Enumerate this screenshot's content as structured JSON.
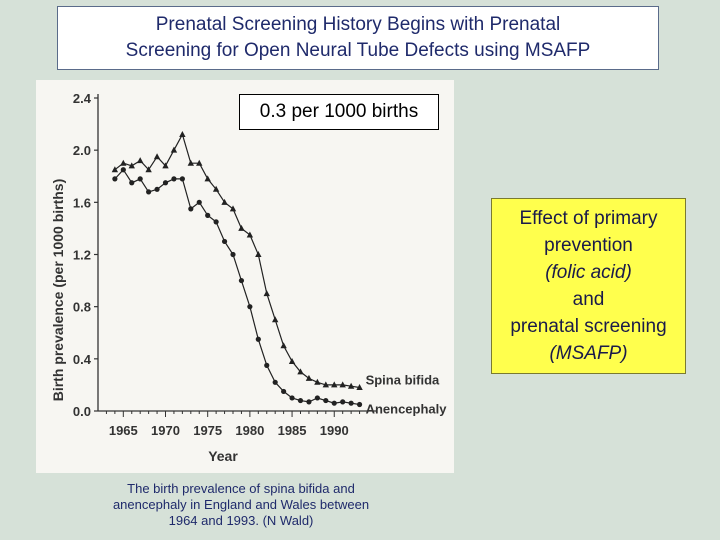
{
  "slide": {
    "title_line1": "Prenatal Screening History Begins with Prenatal",
    "title_line2": "Screening for Open Neural Tube Defects using MSAFP",
    "callout": "0.3 per 1000 births",
    "effect": {
      "line1": "Effect of primary",
      "line2": "prevention",
      "line3": "(folic acid)",
      "line4": "and",
      "line5": "prenatal screening",
      "line6": "(MSAFP)"
    },
    "caption": {
      "line1": "The birth prevalence of spina bifida and",
      "line2": "anencephaly in England and Wales between",
      "line3": "1964 and 1993. (N Wald)"
    }
  },
  "chart_data": {
    "type": "line",
    "xlabel": "Year",
    "ylabel": "Birth prevalence (per 1000 births)",
    "xlim": [
      1962,
      1994
    ],
    "ylim": [
      0.0,
      2.4
    ],
    "xticks": [
      "1965",
      "1970",
      "1975",
      "1980",
      "1985",
      "1990"
    ],
    "yticks": [
      "0.0",
      "0.4",
      "0.8",
      "1.2",
      "1.6",
      "2.0",
      "2.4"
    ],
    "grid": false,
    "series": [
      {
        "name": "Spina bifida",
        "marker": "triangle",
        "x": [
          1964,
          1965,
          1966,
          1967,
          1968,
          1969,
          1970,
          1971,
          1972,
          1973,
          1974,
          1975,
          1976,
          1977,
          1978,
          1979,
          1980,
          1981,
          1982,
          1983,
          1984,
          1985,
          1986,
          1987,
          1988,
          1989,
          1990,
          1991,
          1992,
          1993
        ],
        "y": [
          1.85,
          1.9,
          1.88,
          1.92,
          1.85,
          1.95,
          1.88,
          2.0,
          2.12,
          1.9,
          1.9,
          1.78,
          1.7,
          1.6,
          1.55,
          1.4,
          1.35,
          1.2,
          0.9,
          0.7,
          0.5,
          0.38,
          0.3,
          0.25,
          0.22,
          0.2,
          0.2,
          0.2,
          0.19,
          0.18
        ]
      },
      {
        "name": "Anencephaly",
        "marker": "circle",
        "x": [
          1964,
          1965,
          1966,
          1967,
          1968,
          1969,
          1970,
          1971,
          1972,
          1973,
          1974,
          1975,
          1976,
          1977,
          1978,
          1979,
          1980,
          1981,
          1982,
          1983,
          1984,
          1985,
          1986,
          1987,
          1988,
          1989,
          1990,
          1991,
          1992,
          1993
        ],
        "y": [
          1.78,
          1.85,
          1.75,
          1.78,
          1.68,
          1.7,
          1.75,
          1.78,
          1.78,
          1.55,
          1.6,
          1.5,
          1.45,
          1.3,
          1.2,
          1.0,
          0.8,
          0.55,
          0.35,
          0.22,
          0.15,
          0.1,
          0.08,
          0.07,
          0.1,
          0.08,
          0.06,
          0.07,
          0.06,
          0.05
        ]
      }
    ]
  }
}
